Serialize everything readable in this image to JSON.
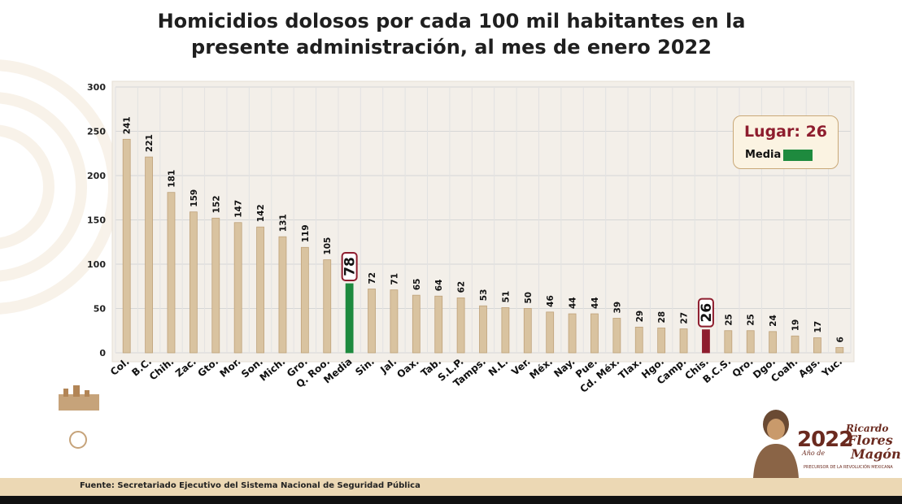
{
  "title_line1": "Homicidios dolosos por cada 100 mil habitantes en la",
  "title_line2": "presente administración, al mes de enero 2022",
  "source": "Fuente: Secretariado Ejecutivo del Sistema Nacional de Seguridad Pública",
  "legend": {
    "rank_label": "Lugar: 26",
    "mean_label": "Media"
  },
  "brand": {
    "year": "2022",
    "year_sub": "Año de",
    "name_line1": "Ricardo",
    "name_line2": "Flores",
    "name_line3": "Magón",
    "tagline": "PRECURSOR DE LA REVOLUCIÓN MEXICANA"
  },
  "colors": {
    "bar": "#d9c3a0",
    "bar_stroke": "#bfa27a",
    "mean": "#1e8a3e",
    "highlight": "#8e1d2e",
    "grid": "#d6d6d6",
    "frame": "#efe9e0"
  },
  "chart_data": {
    "type": "bar",
    "title": "Homicidios dolosos por cada 100 mil habitantes en la presente administración, al mes de enero 2022",
    "xlabel": "",
    "ylabel": "",
    "ylim": [
      0,
      300
    ],
    "yticks": [
      0,
      50,
      100,
      150,
      200,
      250,
      300
    ],
    "grid": true,
    "categories": [
      "Col.",
      "B.C.",
      "Chih.",
      "Zac.",
      "Gto.",
      "Mor.",
      "Son.",
      "Mich.",
      "Gro.",
      "Q. Roo.",
      "Media",
      "Sin.",
      "Jal.",
      "Oax.",
      "Tab.",
      "S.L.P.",
      "Tamps.",
      "N.L.",
      "Ver.",
      "Méx.",
      "Nay.",
      "Pue.",
      "Cd. Méx.",
      "Tlax.",
      "Hgo.",
      "Camp.",
      "Chis.",
      "B.C.S.",
      "Qro.",
      "Dgo.",
      "Coah.",
      "Ags.",
      "Yuc."
    ],
    "values": [
      241,
      221,
      181,
      159,
      152,
      147,
      142,
      131,
      119,
      105,
      78,
      72,
      71,
      65,
      64,
      62,
      53,
      51,
      50,
      46,
      44,
      44,
      39,
      29,
      28,
      27,
      26,
      25,
      25,
      24,
      19,
      17,
      6
    ],
    "highlight_category": "Chis.",
    "mean_category": "Media",
    "legend_position": "top-right"
  }
}
